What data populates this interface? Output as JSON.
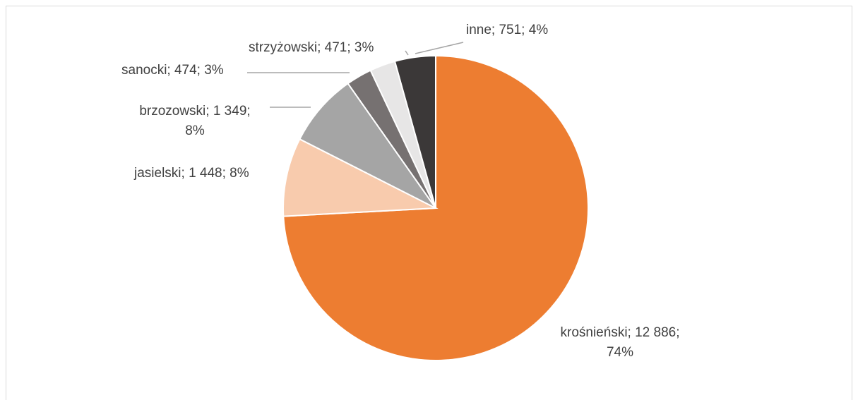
{
  "chart_data": {
    "type": "pie",
    "categories": [
      "krośnieński",
      "jasielski",
      "brzozowski",
      "sanocki",
      "strzyżowski",
      "inne"
    ],
    "values": [
      12886,
      1448,
      1349,
      474,
      471,
      751
    ],
    "value_labels": [
      "krośnieński; 12 886; 74%",
      "jasielski; 1 448; 8%",
      "brzozowski; 1 349; 8%",
      "sanocki; 474; 3%",
      "strzyżowski; 471; 3%",
      "inne; 751; 4%"
    ],
    "colors": [
      "#ED7D31",
      "#F8CBAD",
      "#A5A5A5",
      "#767171",
      "#E7E6E6",
      "#3B3838"
    ]
  }
}
